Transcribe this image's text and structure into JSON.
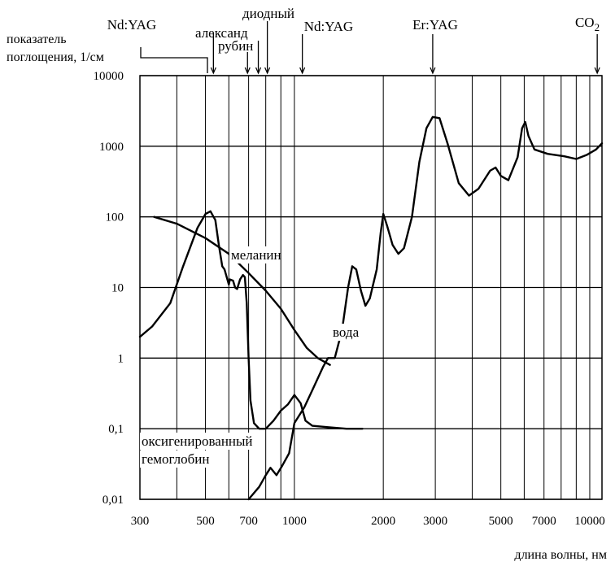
{
  "chart_data": {
    "type": "line",
    "title": "",
    "ylabel": "показатель\nпоглощения, 1/см",
    "xlabel": "длина волны, нм",
    "xscale": "log",
    "yscale": "log",
    "xlim": [
      300,
      11000
    ],
    "ylim": [
      0.01,
      10000
    ],
    "grid": true,
    "x_tick_labels": [
      {
        "value": 300,
        "label": "300"
      },
      {
        "value": 500,
        "label": "500"
      },
      {
        "value": 700,
        "label": "700"
      },
      {
        "value": 1000,
        "label": "1000"
      },
      {
        "value": 2000,
        "label": "2000"
      },
      {
        "value": 3000,
        "label": "3000"
      },
      {
        "value": 5000,
        "label": "5000"
      },
      {
        "value": 7000,
        "label": "7000"
      },
      {
        "value": 10000,
        "label": "10000"
      }
    ],
    "x_gridlines": [
      300,
      400,
      500,
      600,
      700,
      800,
      900,
      1000,
      2000,
      3000,
      4000,
      5000,
      6000,
      7000,
      8000,
      9000,
      10000
    ],
    "y_tick_labels": [
      {
        "value": 10000,
        "label": "10000"
      },
      {
        "value": 1000,
        "label": "1000"
      },
      {
        "value": 100,
        "label": "100"
      },
      {
        "value": 10,
        "label": "10"
      },
      {
        "value": 1,
        "label": "1"
      },
      {
        "value": 0.1,
        "label": "0,1"
      },
      {
        "value": 0.01,
        "label": "0,01"
      }
    ],
    "lasers": [
      {
        "name": "Nd:YAG",
        "wavelength": 532
      },
      {
        "name": "александ",
        "wavelength": 755
      },
      {
        "name": "рубин",
        "wavelength": 694
      },
      {
        "name": "диодный",
        "wavelength": 810
      },
      {
        "name": "Nd:YAG",
        "wavelength": 1064
      },
      {
        "name": "Er:YAG",
        "wavelength": 2940
      },
      {
        "name": "CO2",
        "wavelength": 10600
      }
    ],
    "series": [
      {
        "name": "оксигенированный гемоглобин",
        "points": [
          [
            300,
            2.0
          ],
          [
            330,
            2.8
          ],
          [
            380,
            6
          ],
          [
            420,
            20
          ],
          [
            470,
            70
          ],
          [
            500,
            110
          ],
          [
            520,
            120
          ],
          [
            540,
            90
          ],
          [
            555,
            40
          ],
          [
            570,
            20
          ],
          [
            580,
            18
          ],
          [
            600,
            11
          ],
          [
            605,
            13
          ],
          [
            620,
            12.5
          ],
          [
            630,
            10
          ],
          [
            640,
            9.5
          ],
          [
            655,
            13
          ],
          [
            670,
            15
          ],
          [
            680,
            14
          ],
          [
            690,
            6
          ],
          [
            700,
            1
          ],
          [
            710,
            0.25
          ],
          [
            730,
            0.12
          ],
          [
            760,
            0.1
          ],
          [
            800,
            0.1
          ],
          [
            850,
            0.13
          ],
          [
            900,
            0.18
          ],
          [
            950,
            0.22
          ],
          [
            1000,
            0.3
          ],
          [
            1050,
            0.23
          ],
          [
            1090,
            0.13
          ],
          [
            1150,
            0.11
          ],
          [
            1300,
            0.105
          ],
          [
            1500,
            0.1
          ],
          [
            1700,
            0.1
          ]
        ]
      },
      {
        "name": "меланин",
        "points": [
          [
            335,
            100
          ],
          [
            400,
            80
          ],
          [
            500,
            50
          ],
          [
            600,
            30
          ],
          [
            700,
            16
          ],
          [
            800,
            9
          ],
          [
            900,
            5
          ],
          [
            1000,
            2.5
          ],
          [
            1100,
            1.4
          ],
          [
            1200,
            1.0
          ],
          [
            1320,
            0.8
          ]
        ]
      },
      {
        "name": "вода",
        "points": [
          [
            700,
            0.01
          ],
          [
            760,
            0.015
          ],
          [
            800,
            0.022
          ],
          [
            830,
            0.028
          ],
          [
            870,
            0.022
          ],
          [
            910,
            0.03
          ],
          [
            960,
            0.045
          ],
          [
            1000,
            0.12
          ],
          [
            1080,
            0.2
          ],
          [
            1150,
            0.35
          ],
          [
            1250,
            0.75
          ],
          [
            1300,
            1
          ],
          [
            1370,
            1.0
          ],
          [
            1450,
            2.5
          ],
          [
            1520,
            10
          ],
          [
            1570,
            20
          ],
          [
            1620,
            18
          ],
          [
            1680,
            9
          ],
          [
            1740,
            5.5
          ],
          [
            1800,
            7
          ],
          [
            1900,
            18
          ],
          [
            1960,
            60
          ],
          [
            2000,
            110
          ],
          [
            2060,
            75
          ],
          [
            2150,
            40
          ],
          [
            2250,
            30
          ],
          [
            2350,
            36
          ],
          [
            2500,
            100
          ],
          [
            2650,
            600
          ],
          [
            2800,
            1800
          ],
          [
            2940,
            2600
          ],
          [
            3100,
            2500
          ],
          [
            3300,
            1100
          ],
          [
            3600,
            300
          ],
          [
            3900,
            200
          ],
          [
            4200,
            250
          ],
          [
            4600,
            450
          ],
          [
            4800,
            500
          ],
          [
            5000,
            380
          ],
          [
            5300,
            330
          ],
          [
            5700,
            700
          ],
          [
            5900,
            1800
          ],
          [
            6050,
            2200
          ],
          [
            6200,
            1400
          ],
          [
            6500,
            900
          ],
          [
            7200,
            780
          ],
          [
            8200,
            720
          ],
          [
            9000,
            660
          ],
          [
            9800,
            760
          ],
          [
            10500,
            900
          ],
          [
            11000,
            1100
          ]
        ]
      }
    ],
    "annotations": [
      {
        "text": "меланин",
        "x": 1100,
        "y": 24
      },
      {
        "text": "вода",
        "x": 1800,
        "y": 1.8
      },
      {
        "text": "оксигенированный",
        "x": 440,
        "y": 0.06
      },
      {
        "text": "гемоглобин",
        "x": 440,
        "y": 0.032
      }
    ]
  }
}
